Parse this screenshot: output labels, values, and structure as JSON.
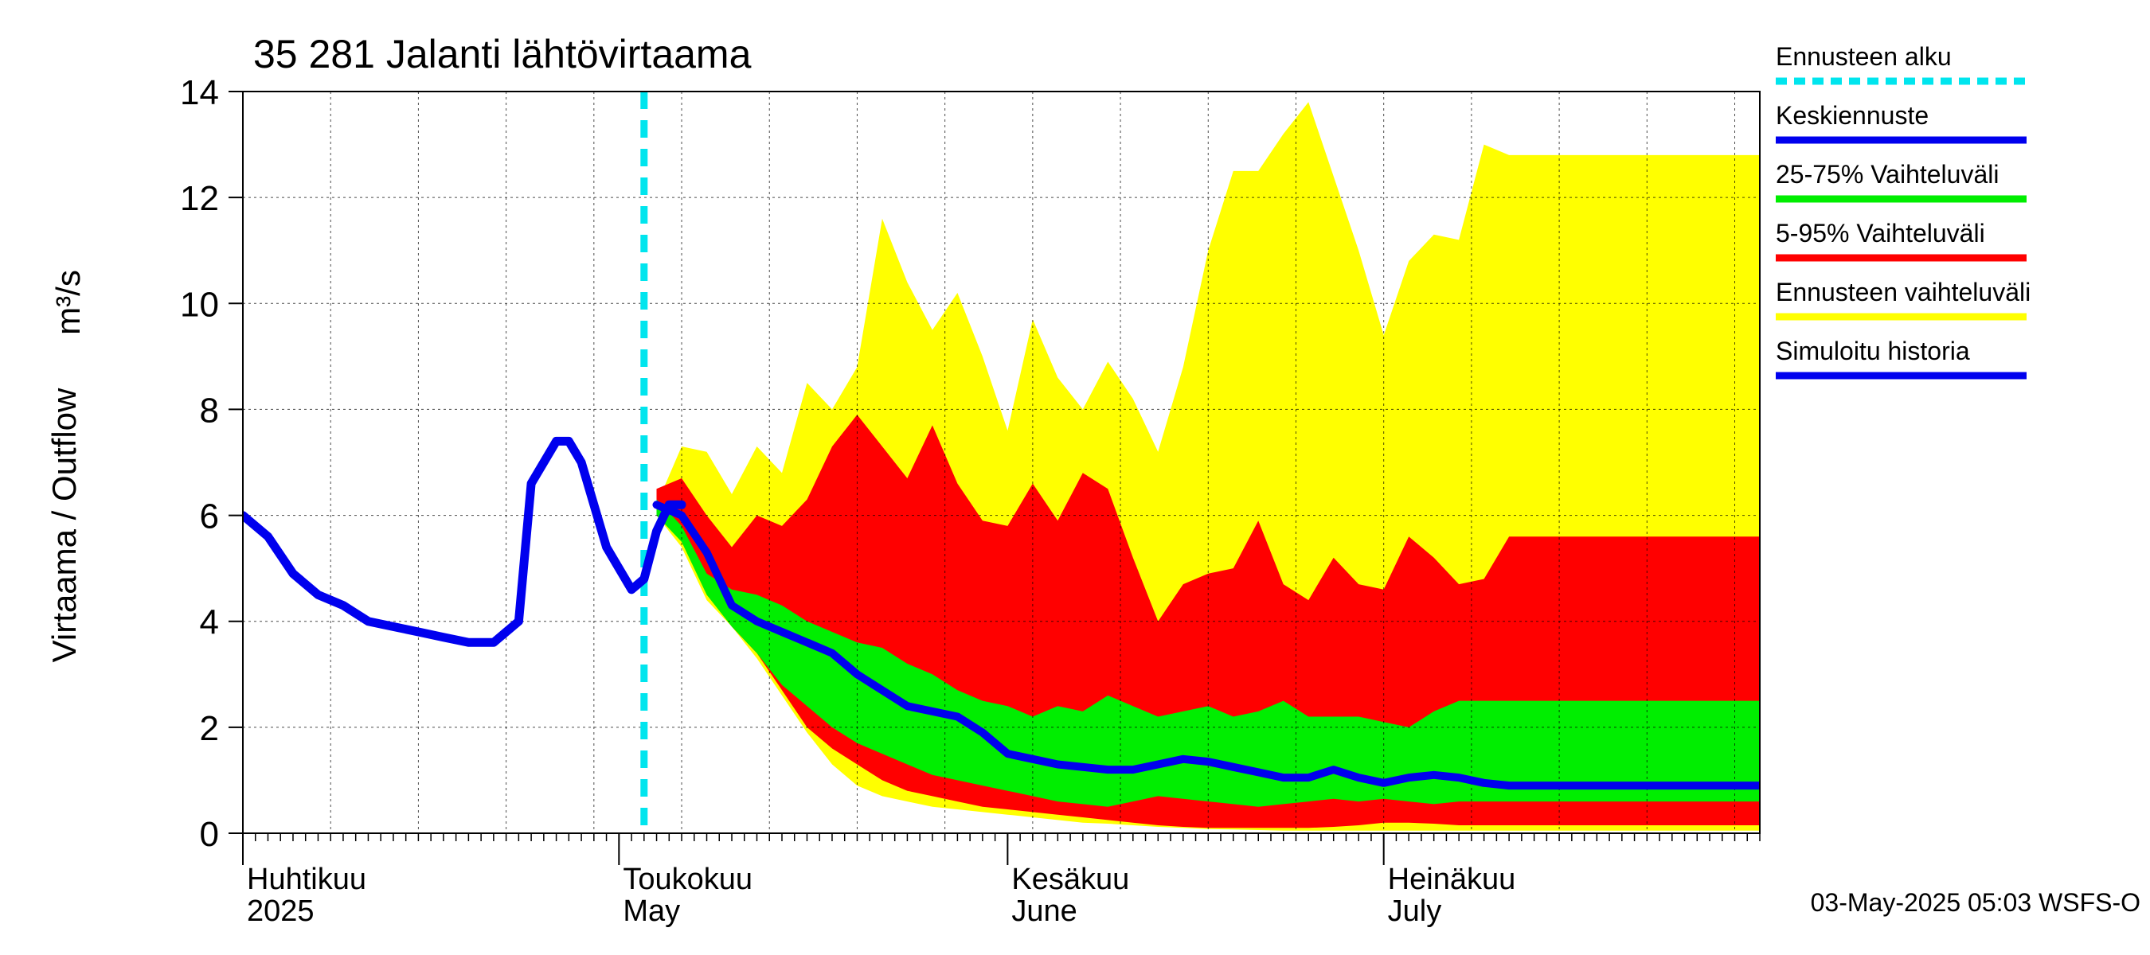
{
  "chart_data": {
    "type": "area",
    "title": "35 281 Jalanti lähtövirtaama",
    "ylabel": "Virtaama / Outflow",
    "yunit": "m³/s",
    "ylim": [
      0,
      14
    ],
    "yticks": [
      "0",
      "2",
      "4",
      "6",
      "8",
      "10",
      "12",
      "14"
    ],
    "xlim": [
      "2025-04-01",
      "2025-07-31"
    ],
    "forecast_start": "2025-05-03",
    "month_labels": [
      {
        "date": "2025-04-01",
        "fi": "Huhtikuu",
        "en": "2025"
      },
      {
        "date": "2025-05-01",
        "fi": "Toukokuu",
        "en": "May"
      },
      {
        "date": "2025-06-01",
        "fi": "Kesäkuu",
        "en": "June"
      },
      {
        "date": "2025-07-01",
        "fi": "Heinäkuu",
        "en": "July"
      }
    ],
    "legend": [
      {
        "label": "Ennusteen alku",
        "color": "#00e5ee",
        "style": "dashed"
      },
      {
        "label": "Keskiennuste",
        "color": "#0000ee",
        "style": "line"
      },
      {
        "label": "25-75% Vaihteluväli",
        "color": "#00ee00",
        "style": "line"
      },
      {
        "label": "5-95% Vaihteluväli",
        "color": "#ff0000",
        "style": "line"
      },
      {
        "label": "Ennusteen vaihteluväli",
        "color": "#ffff00",
        "style": "line"
      },
      {
        "label": "Simuloitu historia",
        "color": "#0000ee",
        "style": "line"
      }
    ],
    "grid": true,
    "history": {
      "name": "Simuloitu historia",
      "color": "#0000ee",
      "x": [
        "2025-04-01",
        "2025-04-03",
        "2025-04-05",
        "2025-04-07",
        "2025-04-09",
        "2025-04-11",
        "2025-04-13",
        "2025-04-15",
        "2025-04-17",
        "2025-04-19",
        "2025-04-21",
        "2025-04-23",
        "2025-04-24",
        "2025-04-26",
        "2025-04-27",
        "2025-04-28",
        "2025-04-30",
        "2025-05-02",
        "2025-05-03",
        "2025-05-04",
        "2025-05-05",
        "2025-05-06"
      ],
      "y": [
        6.0,
        5.6,
        4.9,
        4.5,
        4.3,
        4.0,
        3.9,
        3.8,
        3.7,
        3.6,
        3.6,
        4.0,
        6.6,
        7.4,
        7.4,
        7.0,
        5.4,
        4.6,
        4.8,
        5.7,
        6.2,
        6.2
      ]
    },
    "x": [
      "2025-05-04",
      "2025-05-06",
      "2025-05-08",
      "2025-05-10",
      "2025-05-12",
      "2025-05-14",
      "2025-05-16",
      "2025-05-18",
      "2025-05-20",
      "2025-05-22",
      "2025-05-24",
      "2025-05-26",
      "2025-05-28",
      "2025-05-30",
      "2025-06-01",
      "2025-06-03",
      "2025-06-05",
      "2025-06-07",
      "2025-06-09",
      "2025-06-11",
      "2025-06-13",
      "2025-06-15",
      "2025-06-17",
      "2025-06-19",
      "2025-06-21",
      "2025-06-23",
      "2025-06-25",
      "2025-06-27",
      "2025-06-29",
      "2025-07-01",
      "2025-07-03",
      "2025-07-05",
      "2025-07-07",
      "2025-07-09",
      "2025-07-11",
      "2025-07-13",
      "2025-07-15",
      "2025-07-17",
      "2025-07-19",
      "2025-07-21",
      "2025-07-23",
      "2025-07-25",
      "2025-07-27",
      "2025-07-29",
      "2025-07-31"
    ],
    "series": [
      {
        "name": "Ennusteen vaihteluväli",
        "color": "#ffff00",
        "role": "band",
        "upper": [
          6.2,
          7.3,
          7.2,
          6.4,
          7.3,
          6.8,
          8.5,
          8.0,
          8.8,
          11.6,
          10.4,
          9.5,
          10.2,
          9.0,
          7.6,
          9.7,
          8.6,
          8.0,
          8.9,
          8.2,
          7.2,
          8.8,
          11.0,
          12.5,
          12.5,
          13.2,
          13.8,
          12.4,
          11.0,
          9.4,
          10.8,
          11.3,
          11.2,
          13.0,
          12.8,
          12.8,
          12.8,
          12.8,
          12.8,
          12.8,
          12.8,
          12.8,
          12.8,
          12.8,
          12.8
        ],
        "lower": [
          6.0,
          5.4,
          4.4,
          3.9,
          3.3,
          2.6,
          1.9,
          1.3,
          0.9,
          0.7,
          0.6,
          0.5,
          0.45,
          0.4,
          0.35,
          0.3,
          0.25,
          0.2,
          0.18,
          0.15,
          0.12,
          0.1,
          0.08,
          0.07,
          0.06,
          0.05,
          0.05,
          0.05,
          0.05,
          0.05,
          0.05,
          0.05,
          0.05,
          0.05,
          0.05,
          0.05,
          0.05,
          0.05,
          0.05,
          0.05,
          0.05,
          0.05,
          0.05,
          0.05,
          0.05
        ]
      },
      {
        "name": "5-95% Vaihteluväli",
        "color": "#ff0000",
        "role": "band",
        "upper": [
          6.5,
          6.7,
          6.0,
          5.4,
          6.0,
          5.8,
          6.3,
          7.3,
          7.9,
          7.3,
          6.7,
          7.7,
          6.6,
          5.9,
          5.8,
          6.6,
          5.9,
          6.8,
          6.5,
          5.2,
          4.0,
          4.7,
          4.9,
          5.0,
          5.9,
          4.7,
          4.4,
          5.2,
          4.7,
          4.6,
          5.6,
          5.2,
          4.7,
          4.8,
          5.6,
          5.6,
          5.6,
          5.6,
          5.6,
          5.6,
          5.6,
          5.6,
          5.6,
          5.6,
          5.6
        ],
        "lower": [
          6.0,
          5.6,
          4.6,
          3.9,
          3.4,
          2.7,
          2.0,
          1.6,
          1.3,
          1.0,
          0.8,
          0.7,
          0.6,
          0.5,
          0.45,
          0.4,
          0.35,
          0.3,
          0.25,
          0.2,
          0.15,
          0.12,
          0.1,
          0.1,
          0.1,
          0.1,
          0.1,
          0.12,
          0.15,
          0.2,
          0.2,
          0.18,
          0.15,
          0.15,
          0.15,
          0.15,
          0.15,
          0.15,
          0.15,
          0.15,
          0.15,
          0.15,
          0.15,
          0.15,
          0.15
        ]
      },
      {
        "name": "25-75% Vaihteluväli",
        "color": "#00ee00",
        "role": "band",
        "upper": [
          6.3,
          5.8,
          4.9,
          4.6,
          4.5,
          4.3,
          4.0,
          3.8,
          3.6,
          3.5,
          3.2,
          3.0,
          2.7,
          2.5,
          2.4,
          2.2,
          2.4,
          2.3,
          2.6,
          2.4,
          2.2,
          2.3,
          2.4,
          2.2,
          2.3,
          2.5,
          2.2,
          2.2,
          2.2,
          2.1,
          2.0,
          2.3,
          2.5,
          2.5,
          2.5,
          2.5,
          2.5,
          2.5,
          2.5,
          2.5,
          2.5,
          2.5,
          2.5,
          2.5,
          2.5
        ],
        "lower": [
          6.0,
          5.5,
          4.5,
          3.9,
          3.4,
          2.8,
          2.4,
          2.0,
          1.7,
          1.5,
          1.3,
          1.1,
          1.0,
          0.9,
          0.8,
          0.7,
          0.6,
          0.55,
          0.5,
          0.6,
          0.7,
          0.65,
          0.6,
          0.55,
          0.5,
          0.55,
          0.6,
          0.65,
          0.6,
          0.65,
          0.6,
          0.55,
          0.6,
          0.6,
          0.6,
          0.6,
          0.6,
          0.6,
          0.6,
          0.6,
          0.6,
          0.6,
          0.6,
          0.6,
          0.6
        ]
      },
      {
        "name": "Keskiennuste",
        "color": "#0000ee",
        "role": "line",
        "values": [
          6.2,
          6.0,
          5.3,
          4.3,
          4.0,
          3.8,
          3.6,
          3.4,
          3.0,
          2.7,
          2.4,
          2.3,
          2.2,
          1.9,
          1.5,
          1.4,
          1.3,
          1.25,
          1.2,
          1.2,
          1.3,
          1.4,
          1.35,
          1.25,
          1.15,
          1.05,
          1.05,
          1.2,
          1.05,
          0.95,
          1.05,
          1.1,
          1.05,
          0.95,
          0.9,
          0.9,
          0.9,
          0.9,
          0.9,
          0.9,
          0.9,
          0.9,
          0.9,
          0.9,
          0.9
        ]
      }
    ],
    "footer": "03-May-2025 05:03 WSFS-O"
  }
}
